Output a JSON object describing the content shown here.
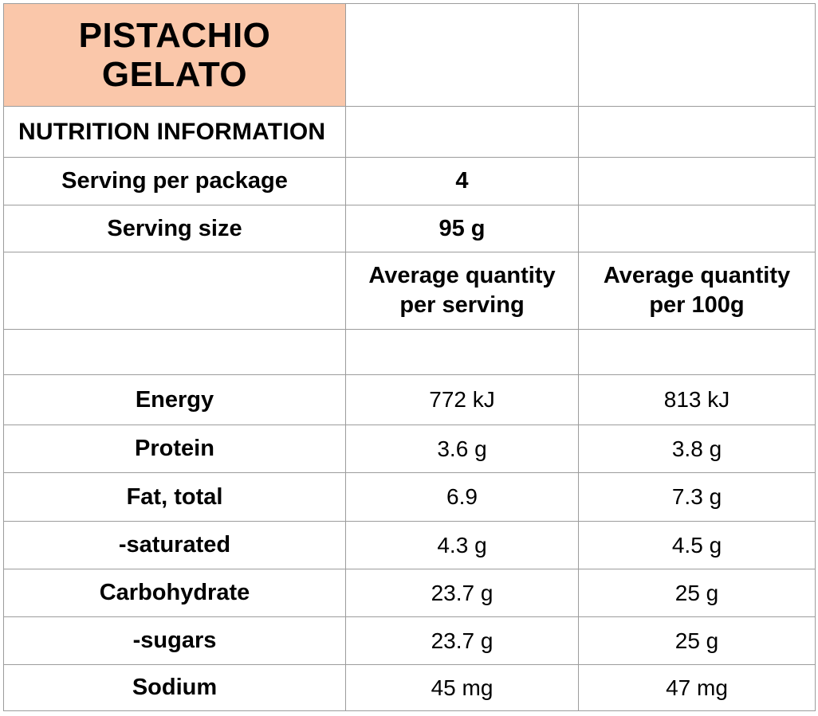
{
  "colors": {
    "title_background": "#FAC7AA",
    "grid_line": "#9C9C9C",
    "text": "#000000"
  },
  "header": {
    "product_title": "PISTACHIO\nGELATO",
    "section_title": "NUTRITION INFORMATION"
  },
  "serving_info": [
    {
      "label": "Serving per package",
      "value": "4"
    },
    {
      "label": "Serving size",
      "value": "95 g"
    }
  ],
  "column_headers": {
    "per_serving": "Average quantity\nper serving",
    "per_100g": "Average quantity\nper 100g"
  },
  "nutrients": [
    {
      "name": "Energy",
      "per_serving": "772 kJ",
      "per_100g": "813 kJ"
    },
    {
      "name": "Protein",
      "per_serving": "3.6 g",
      "per_100g": "3.8 g"
    },
    {
      "name": "Fat, total",
      "per_serving": "6.9",
      "per_100g": "7.3 g"
    },
    {
      "name": "-saturated",
      "per_serving": "4.3 g",
      "per_100g": "4.5 g"
    },
    {
      "name": "Carbohydrate",
      "per_serving": "23.7 g",
      "per_100g": "25 g"
    },
    {
      "name": "-sugars",
      "per_serving": "23.7 g",
      "per_100g": "25 g"
    },
    {
      "name": "Sodium",
      "per_serving": "45 mg",
      "per_100g": "47 mg"
    }
  ]
}
